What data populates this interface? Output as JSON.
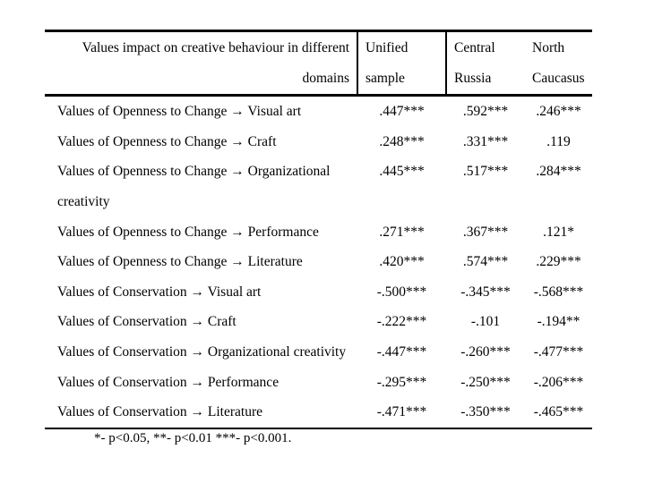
{
  "table": {
    "header": {
      "col1": "Values impact on creative behaviour in different\ndomains",
      "col2": "Unified\nsample",
      "col3": "Central\nRussia",
      "col4": "North\nCaucasus"
    },
    "rows": [
      {
        "label": "Values of Openness to Change → Visual art",
        "unified": ".447***",
        "central": ".592***",
        "caucasus": ".246***"
      },
      {
        "label": "Values of Openness to Change → Craft",
        "unified": ".248***",
        "central": ".331***",
        "caucasus": ".119"
      },
      {
        "label": "Values of Openness to Change → Organizational\ncreativity",
        "unified": ".445***",
        "central": ".517***",
        "caucasus": ".284***"
      },
      {
        "label": "Values of Openness to Change → Performance",
        "unified": ".271***",
        "central": ".367***",
        "caucasus": ".121*"
      },
      {
        "label": "Values of Openness to Change → Literature",
        "unified": ".420***",
        "central": ".574***",
        "caucasus": ".229***"
      },
      {
        "label": "Values of Conservation → Visual art",
        "unified": "-.500***",
        "central": "-.345***",
        "caucasus": "-.568***"
      },
      {
        "label": "Values of Conservation → Craft",
        "unified": "-.222***",
        "central": "-.101",
        "caucasus": "-.194**"
      },
      {
        "label": "Values of Conservation → Organizational creativity",
        "unified": "-.447***",
        "central": "-.260***",
        "caucasus": "-.477***"
      },
      {
        "label": "Values of Conservation → Performance",
        "unified": "-.295***",
        "central": "-.250***",
        "caucasus": "-.206***"
      },
      {
        "label": "Values of Conservation → Literature",
        "unified": "-.471***",
        "central": "-.350***",
        "caucasus": "-.465***"
      }
    ],
    "footnote": "*- p<0.05, **- p<0.01 ***- p<0.001."
  }
}
